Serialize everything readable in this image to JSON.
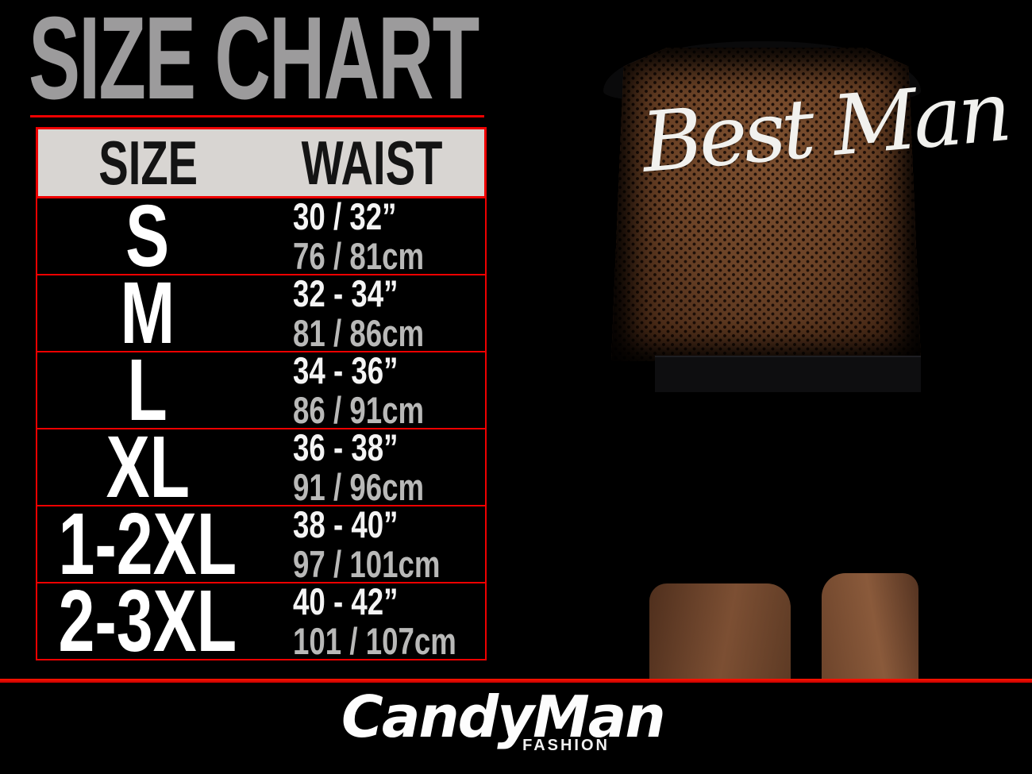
{
  "page": {
    "title": "SIZE CHART"
  },
  "size_table": {
    "columns": {
      "size": "SIZE",
      "waist": "WAIST"
    },
    "rows": [
      {
        "size": "S",
        "waist_in": "30 / 32”",
        "waist_cm": "76 / 81cm"
      },
      {
        "size": "M",
        "waist_in": "32 - 34”",
        "waist_cm": "81 / 86cm"
      },
      {
        "size": "L",
        "waist_in": "34 - 36”",
        "waist_cm": "86 / 91cm"
      },
      {
        "size": "XL",
        "waist_in": "36 - 38”",
        "waist_cm": "91 / 96cm"
      },
      {
        "size": "1-2XL",
        "waist_in": "38 - 40”",
        "waist_cm": "97 / 101cm"
      },
      {
        "size": "2-3XL",
        "waist_in": "40 - 42”",
        "waist_cm": "101 / 107cm"
      }
    ]
  },
  "product_photo": {
    "back_print": "Best Man"
  },
  "brand": {
    "name": "CandyMan",
    "tagline": "FASHION"
  },
  "colors": {
    "background": "#000000",
    "accent_red": "#ee0000",
    "title_gray": "#9c9b9c",
    "header_bg": "#d8d5d2",
    "size_text": "#ffffff",
    "inches_text": "#f4f4f4",
    "cm_text": "#b9b9b8",
    "mesh_brown": "#6e4428"
  }
}
